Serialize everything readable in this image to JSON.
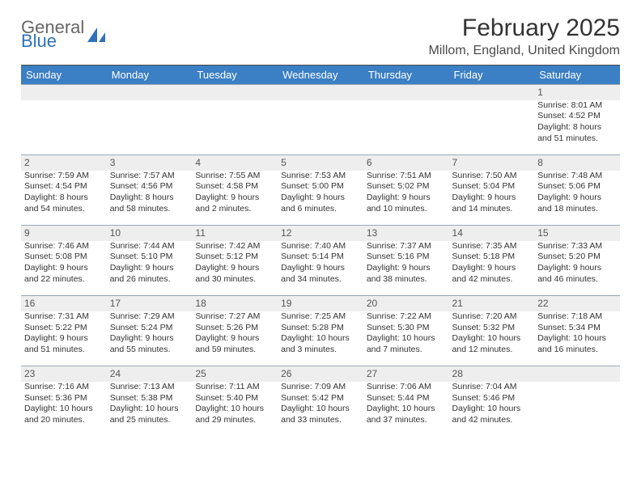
{
  "logo": {
    "word1": "General",
    "word2": "Blue"
  },
  "title": "February 2025",
  "location": "Millom, England, United Kingdom",
  "colors": {
    "header_bg": "#3b7fc4",
    "header_fg": "#ffffff",
    "daynum_bg": "#eeeeee",
    "rule": "#9aa8b5",
    "text": "#333333",
    "logo_gray": "#666666",
    "logo_blue": "#2f73b8"
  },
  "typography": {
    "title_fontsize": 30,
    "location_fontsize": 16,
    "dayhead_fontsize": 13,
    "daynum_fontsize": 12,
    "cell_fontsize": 10.5
  },
  "day_headers": [
    "Sunday",
    "Monday",
    "Tuesday",
    "Wednesday",
    "Thursday",
    "Friday",
    "Saturday"
  ],
  "weeks": [
    {
      "nums": [
        "",
        "",
        "",
        "",
        "",
        "",
        "1"
      ],
      "cells": [
        null,
        null,
        null,
        null,
        null,
        null,
        {
          "sunrise": "Sunrise: 8:01 AM",
          "sunset": "Sunset: 4:52 PM",
          "d1": "Daylight: 8 hours",
          "d2": "and 51 minutes."
        }
      ]
    },
    {
      "nums": [
        "2",
        "3",
        "4",
        "5",
        "6",
        "7",
        "8"
      ],
      "cells": [
        {
          "sunrise": "Sunrise: 7:59 AM",
          "sunset": "Sunset: 4:54 PM",
          "d1": "Daylight: 8 hours",
          "d2": "and 54 minutes."
        },
        {
          "sunrise": "Sunrise: 7:57 AM",
          "sunset": "Sunset: 4:56 PM",
          "d1": "Daylight: 8 hours",
          "d2": "and 58 minutes."
        },
        {
          "sunrise": "Sunrise: 7:55 AM",
          "sunset": "Sunset: 4:58 PM",
          "d1": "Daylight: 9 hours",
          "d2": "and 2 minutes."
        },
        {
          "sunrise": "Sunrise: 7:53 AM",
          "sunset": "Sunset: 5:00 PM",
          "d1": "Daylight: 9 hours",
          "d2": "and 6 minutes."
        },
        {
          "sunrise": "Sunrise: 7:51 AM",
          "sunset": "Sunset: 5:02 PM",
          "d1": "Daylight: 9 hours",
          "d2": "and 10 minutes."
        },
        {
          "sunrise": "Sunrise: 7:50 AM",
          "sunset": "Sunset: 5:04 PM",
          "d1": "Daylight: 9 hours",
          "d2": "and 14 minutes."
        },
        {
          "sunrise": "Sunrise: 7:48 AM",
          "sunset": "Sunset: 5:06 PM",
          "d1": "Daylight: 9 hours",
          "d2": "and 18 minutes."
        }
      ]
    },
    {
      "nums": [
        "9",
        "10",
        "11",
        "12",
        "13",
        "14",
        "15"
      ],
      "cells": [
        {
          "sunrise": "Sunrise: 7:46 AM",
          "sunset": "Sunset: 5:08 PM",
          "d1": "Daylight: 9 hours",
          "d2": "and 22 minutes."
        },
        {
          "sunrise": "Sunrise: 7:44 AM",
          "sunset": "Sunset: 5:10 PM",
          "d1": "Daylight: 9 hours",
          "d2": "and 26 minutes."
        },
        {
          "sunrise": "Sunrise: 7:42 AM",
          "sunset": "Sunset: 5:12 PM",
          "d1": "Daylight: 9 hours",
          "d2": "and 30 minutes."
        },
        {
          "sunrise": "Sunrise: 7:40 AM",
          "sunset": "Sunset: 5:14 PM",
          "d1": "Daylight: 9 hours",
          "d2": "and 34 minutes."
        },
        {
          "sunrise": "Sunrise: 7:37 AM",
          "sunset": "Sunset: 5:16 PM",
          "d1": "Daylight: 9 hours",
          "d2": "and 38 minutes."
        },
        {
          "sunrise": "Sunrise: 7:35 AM",
          "sunset": "Sunset: 5:18 PM",
          "d1": "Daylight: 9 hours",
          "d2": "and 42 minutes."
        },
        {
          "sunrise": "Sunrise: 7:33 AM",
          "sunset": "Sunset: 5:20 PM",
          "d1": "Daylight: 9 hours",
          "d2": "and 46 minutes."
        }
      ]
    },
    {
      "nums": [
        "16",
        "17",
        "18",
        "19",
        "20",
        "21",
        "22"
      ],
      "cells": [
        {
          "sunrise": "Sunrise: 7:31 AM",
          "sunset": "Sunset: 5:22 PM",
          "d1": "Daylight: 9 hours",
          "d2": "and 51 minutes."
        },
        {
          "sunrise": "Sunrise: 7:29 AM",
          "sunset": "Sunset: 5:24 PM",
          "d1": "Daylight: 9 hours",
          "d2": "and 55 minutes."
        },
        {
          "sunrise": "Sunrise: 7:27 AM",
          "sunset": "Sunset: 5:26 PM",
          "d1": "Daylight: 9 hours",
          "d2": "and 59 minutes."
        },
        {
          "sunrise": "Sunrise: 7:25 AM",
          "sunset": "Sunset: 5:28 PM",
          "d1": "Daylight: 10 hours",
          "d2": "and 3 minutes."
        },
        {
          "sunrise": "Sunrise: 7:22 AM",
          "sunset": "Sunset: 5:30 PM",
          "d1": "Daylight: 10 hours",
          "d2": "and 7 minutes."
        },
        {
          "sunrise": "Sunrise: 7:20 AM",
          "sunset": "Sunset: 5:32 PM",
          "d1": "Daylight: 10 hours",
          "d2": "and 12 minutes."
        },
        {
          "sunrise": "Sunrise: 7:18 AM",
          "sunset": "Sunset: 5:34 PM",
          "d1": "Daylight: 10 hours",
          "d2": "and 16 minutes."
        }
      ]
    },
    {
      "nums": [
        "23",
        "24",
        "25",
        "26",
        "27",
        "28",
        ""
      ],
      "cells": [
        {
          "sunrise": "Sunrise: 7:16 AM",
          "sunset": "Sunset: 5:36 PM",
          "d1": "Daylight: 10 hours",
          "d2": "and 20 minutes."
        },
        {
          "sunrise": "Sunrise: 7:13 AM",
          "sunset": "Sunset: 5:38 PM",
          "d1": "Daylight: 10 hours",
          "d2": "and 25 minutes."
        },
        {
          "sunrise": "Sunrise: 7:11 AM",
          "sunset": "Sunset: 5:40 PM",
          "d1": "Daylight: 10 hours",
          "d2": "and 29 minutes."
        },
        {
          "sunrise": "Sunrise: 7:09 AM",
          "sunset": "Sunset: 5:42 PM",
          "d1": "Daylight: 10 hours",
          "d2": "and 33 minutes."
        },
        {
          "sunrise": "Sunrise: 7:06 AM",
          "sunset": "Sunset: 5:44 PM",
          "d1": "Daylight: 10 hours",
          "d2": "and 37 minutes."
        },
        {
          "sunrise": "Sunrise: 7:04 AM",
          "sunset": "Sunset: 5:46 PM",
          "d1": "Daylight: 10 hours",
          "d2": "and 42 minutes."
        },
        null
      ]
    }
  ]
}
